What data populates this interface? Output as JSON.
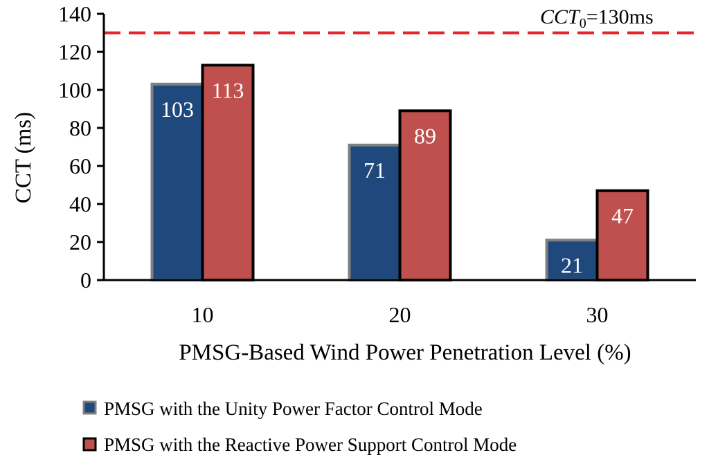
{
  "chart_data": {
    "type": "bar",
    "title": "",
    "xlabel": "PMSG-Based Wind Power Penetration Level (%)",
    "ylabel": "CCT (ms)",
    "categories": [
      "10",
      "20",
      "30"
    ],
    "ylim": [
      0,
      140
    ],
    "yticks": [
      "0",
      "20",
      "40",
      "60",
      "80",
      "100",
      "120",
      "140"
    ],
    "series": [
      {
        "name": "PMSG with the Unity Power Factor Control Mode",
        "values": [
          103,
          71,
          21
        ],
        "color": "#1F497D",
        "edge_color": "#808080"
      },
      {
        "name": "PMSG with the Reactive Power Support Control Mode",
        "values": [
          113,
          89,
          47
        ],
        "color": "#C0504D",
        "edge_color": "#000000"
      }
    ],
    "reference_line": {
      "value": 130,
      "label_italic": "CCT",
      "label_sub": "0",
      "label_rest": "=130ms",
      "color": "#E8242B"
    },
    "grid": false,
    "legend_position": "bottom"
  }
}
